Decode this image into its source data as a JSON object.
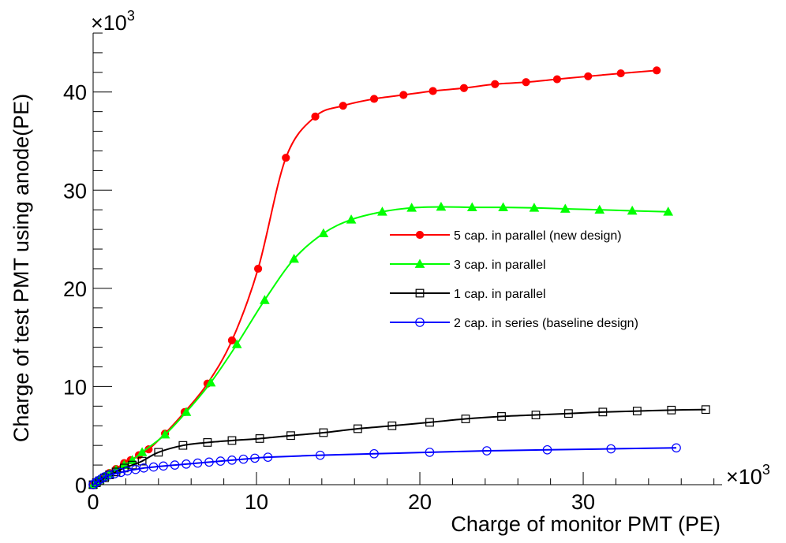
{
  "chart_data": {
    "type": "line",
    "title": "",
    "xlabel": "Charge of monitor PMT (PE)",
    "ylabel": "Charge of test PMT using anode(PE)",
    "x_multiplier": "×10",
    "x_multiplier_exp": "3",
    "y_multiplier": "×10",
    "y_multiplier_exp": "3",
    "xlim": [
      0,
      38.5
    ],
    "ylim": [
      0,
      46
    ],
    "x_ticks": [
      0,
      10,
      20,
      30
    ],
    "y_ticks": [
      0,
      10,
      20,
      30,
      40
    ],
    "x_tick_labels": [
      "0",
      "10",
      "20",
      "30"
    ],
    "y_tick_labels": [
      "0",
      "10",
      "20",
      "30",
      "40"
    ],
    "grid": false,
    "legend_position": "center-right",
    "series": [
      {
        "name": "5 cap. in parallel (new design)",
        "color": "#ff0000",
        "marker": "filled-circle",
        "x": [
          0,
          0.2,
          0.4,
          0.7,
          1.0,
          1.4,
          1.9,
          2.3,
          2.8,
          3.4,
          4.4,
          5.6,
          7.0,
          8.5,
          10.1,
          11.8,
          13.6,
          15.3,
          17.2,
          19.0,
          20.8,
          22.7,
          24.6,
          26.5,
          28.4,
          30.3,
          32.3,
          34.5
        ],
        "y": [
          0,
          0.3,
          0.5,
          0.8,
          1.2,
          1.6,
          2.2,
          2.5,
          3.0,
          3.6,
          5.2,
          7.4,
          10.3,
          14.7,
          22.0,
          33.3,
          37.5,
          38.6,
          39.3,
          39.7,
          40.1,
          40.4,
          40.8,
          41.0,
          41.3,
          41.6,
          41.9,
          42.2
        ]
      },
      {
        "name": "3 cap. in parallel",
        "color": "#00ff00",
        "marker": "filled-triangle",
        "x": [
          0,
          0.2,
          0.4,
          0.7,
          1.0,
          1.4,
          1.9,
          2.4,
          3.0,
          4.4,
          5.7,
          7.2,
          8.8,
          10.5,
          12.3,
          14.1,
          15.8,
          17.7,
          19.5,
          21.3,
          23.2,
          25.1,
          27.0,
          28.9,
          31.0,
          33.0,
          35.2
        ],
        "y": [
          0,
          0.3,
          0.5,
          0.8,
          1.1,
          1.5,
          2.0,
          2.5,
          3.3,
          5.1,
          7.4,
          10.4,
          14.3,
          18.8,
          23.0,
          25.6,
          27.0,
          27.8,
          28.2,
          28.3,
          28.25,
          28.25,
          28.2,
          28.1,
          28.0,
          27.9,
          27.8
        ]
      },
      {
        "name": "1 cap. in parallel",
        "color": "#000000",
        "marker": "open-square",
        "x": [
          0,
          0.2,
          0.4,
          0.7,
          1.0,
          1.4,
          1.9,
          2.4,
          3.0,
          4.0,
          5.5,
          7.0,
          8.5,
          10.2,
          12.1,
          14.1,
          16.2,
          18.3,
          20.6,
          22.8,
          25.0,
          27.1,
          29.1,
          31.2,
          33.3,
          35.4,
          37.5
        ],
        "y": [
          0,
          0.2,
          0.4,
          0.7,
          1.0,
          1.3,
          1.7,
          2.0,
          2.4,
          3.3,
          4.0,
          4.3,
          4.5,
          4.7,
          5.0,
          5.3,
          5.7,
          6.0,
          6.35,
          6.7,
          6.95,
          7.1,
          7.25,
          7.4,
          7.5,
          7.6,
          7.65
        ]
      },
      {
        "name": "2 cap. in series (baseline design)",
        "color": "#0000ff",
        "marker": "open-circle",
        "x": [
          0,
          0.15,
          0.3,
          0.5,
          0.7,
          1.0,
          1.3,
          1.7,
          2.1,
          2.6,
          3.1,
          3.7,
          4.3,
          5.0,
          5.7,
          6.4,
          7.1,
          7.8,
          8.5,
          9.2,
          9.9,
          10.7,
          13.9,
          17.2,
          20.6,
          24.1,
          27.8,
          31.7,
          35.7
        ],
        "y": [
          0,
          0.2,
          0.4,
          0.6,
          0.8,
          1.0,
          1.1,
          1.25,
          1.4,
          1.55,
          1.7,
          1.8,
          1.9,
          2.0,
          2.1,
          2.2,
          2.3,
          2.4,
          2.5,
          2.6,
          2.7,
          2.8,
          3.0,
          3.15,
          3.3,
          3.45,
          3.55,
          3.65,
          3.75
        ]
      }
    ]
  }
}
